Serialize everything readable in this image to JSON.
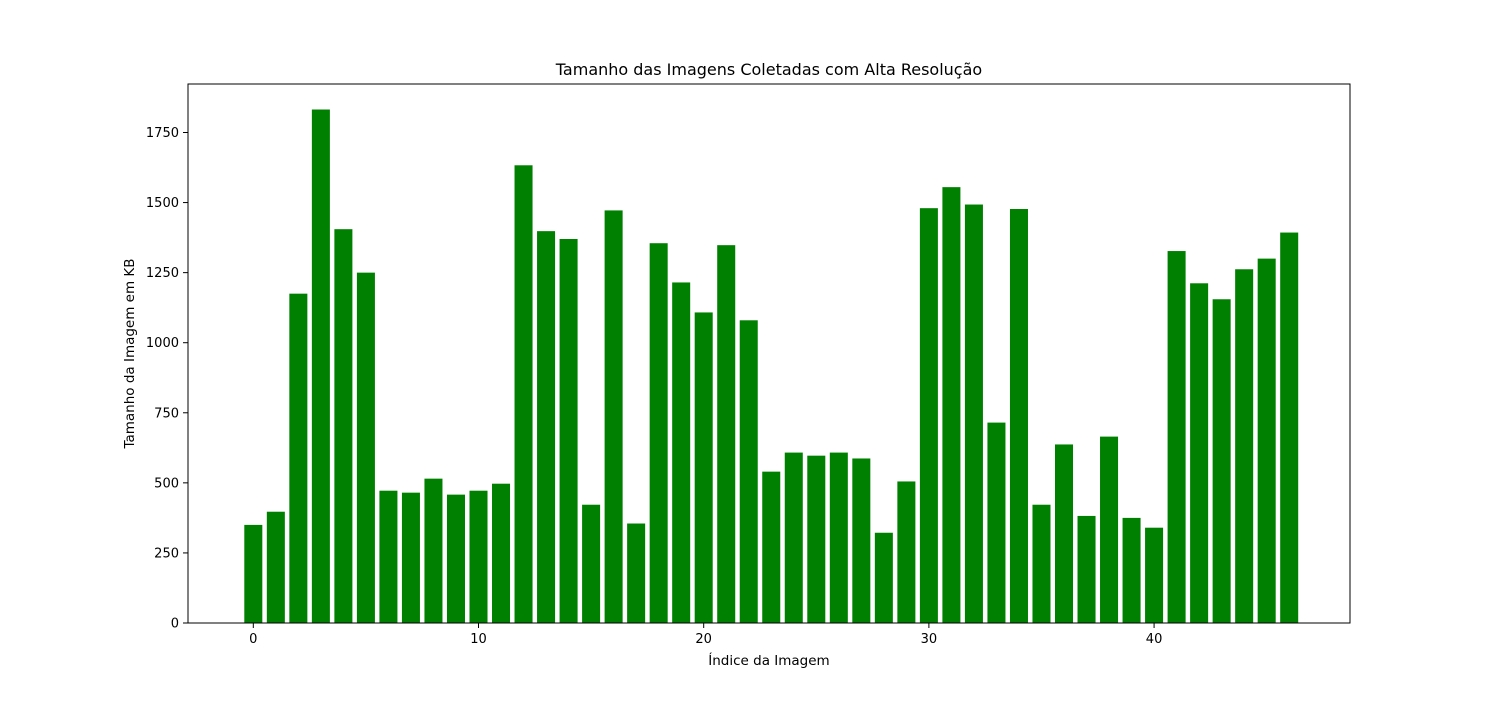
{
  "chart_data": {
    "type": "bar",
    "title": "Tamanho das Imagens Coletadas com Alta Resolução",
    "xlabel": "Índice da Imagem",
    "ylabel": "Tamanho da Imagem em KB",
    "x": [
      0,
      1,
      2,
      3,
      4,
      5,
      6,
      7,
      8,
      9,
      10,
      11,
      12,
      13,
      14,
      15,
      16,
      17,
      18,
      19,
      20,
      21,
      22,
      23,
      24,
      25,
      26,
      27,
      28,
      29,
      30,
      31,
      32,
      33,
      34,
      35,
      36,
      37,
      38,
      39,
      40,
      41,
      42,
      43,
      44,
      45,
      46
    ],
    "values": [
      350,
      397,
      1175,
      1832,
      1405,
      1250,
      472,
      465,
      515,
      458,
      472,
      497,
      1633,
      1398,
      1370,
      422,
      1472,
      355,
      1355,
      1215,
      1108,
      1348,
      1080,
      540,
      608,
      597,
      608,
      587,
      322,
      505,
      1480,
      1555,
      1493,
      715,
      1477,
      422,
      637,
      382,
      665,
      375,
      340,
      1327,
      1212,
      1155,
      1262,
      1300,
      1393
    ],
    "xticks": [
      0,
      10,
      20,
      30,
      40
    ],
    "yticks": [
      0,
      250,
      500,
      750,
      1000,
      1250,
      1500,
      1750
    ],
    "xlim": [
      -2.9,
      48.7
    ],
    "ylim": [
      0,
      1923
    ],
    "bar_width": 0.8,
    "bar_color": "#008000",
    "grid": false,
    "legend": "none"
  }
}
